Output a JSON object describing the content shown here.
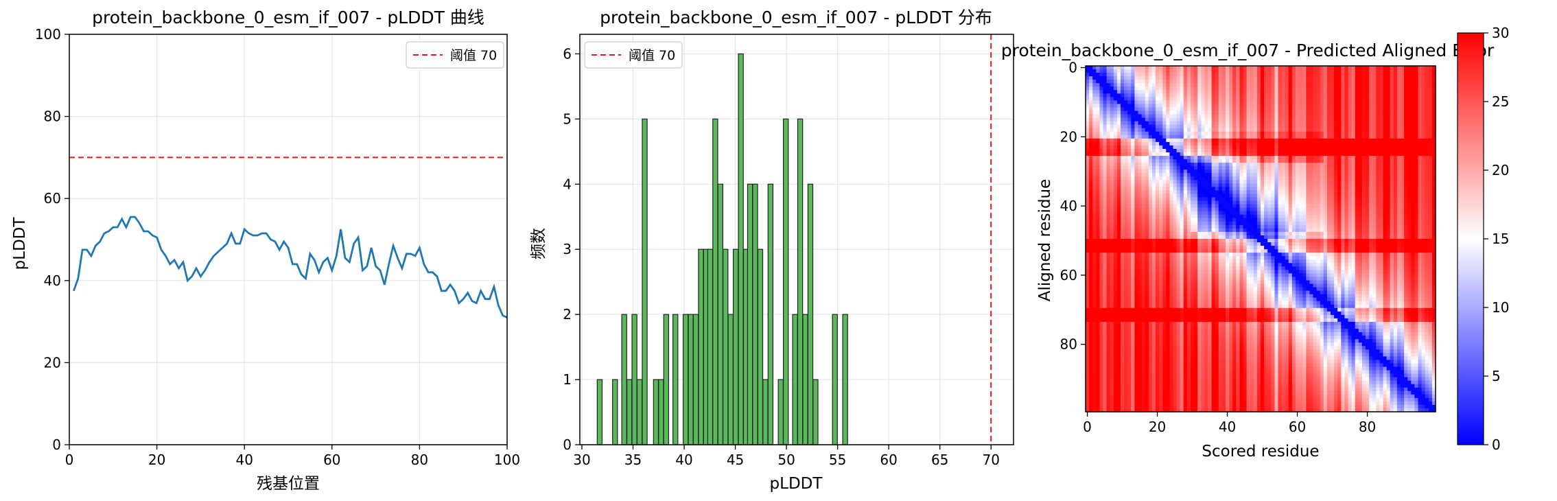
{
  "chart_data": [
    {
      "type": "line",
      "title": "protein_backbone_0_esm_if_007 - pLDDT 曲线",
      "xlabel": "残基位置",
      "ylabel": "pLDDT",
      "xlim": [
        0,
        100
      ],
      "ylim": [
        0,
        100
      ],
      "xticks": [
        0,
        20,
        40,
        60,
        80,
        100
      ],
      "yticks": [
        0,
        20,
        40,
        60,
        80,
        100
      ],
      "grid": true,
      "legend_position": "top-right",
      "threshold": {
        "value": 70,
        "label": "阈值 70",
        "color": "#e41a1c",
        "style": "dashed"
      },
      "series": [
        {
          "color": "#1f77b4",
          "x": [
            1,
            2,
            3,
            4,
            5,
            6,
            7,
            8,
            9,
            10,
            11,
            12,
            13,
            14,
            15,
            16,
            17,
            18,
            19,
            20,
            21,
            22,
            23,
            24,
            25,
            26,
            27,
            28,
            29,
            30,
            31,
            32,
            33,
            34,
            35,
            36,
            37,
            38,
            39,
            40,
            41,
            42,
            43,
            44,
            45,
            46,
            47,
            48,
            49,
            50,
            51,
            52,
            53,
            54,
            55,
            56,
            57,
            58,
            59,
            60,
            61,
            62,
            63,
            64,
            65,
            66,
            67,
            68,
            69,
            70,
            71,
            72,
            73,
            74,
            75,
            76,
            77,
            78,
            79,
            80,
            81,
            82,
            83,
            84,
            85,
            86,
            87,
            88,
            89,
            90,
            91,
            92,
            93,
            94,
            95,
            96,
            97,
            98,
            99,
            100
          ],
          "values": [
            37.5,
            40.5,
            47.5,
            47.5,
            46,
            48.5,
            49.5,
            51.5,
            52,
            53,
            53,
            55,
            53,
            55.5,
            55.5,
            54,
            52,
            52,
            51,
            50.5,
            47.5,
            46,
            44,
            45,
            43,
            44.5,
            40,
            41,
            43,
            41,
            42.5,
            44.5,
            46,
            47,
            48,
            49,
            51.5,
            49,
            49,
            52.5,
            51.5,
            51,
            51,
            51.5,
            51.5,
            50,
            49.5,
            47.5,
            49.5,
            48,
            44,
            44,
            41.5,
            40.5,
            46.5,
            45,
            42,
            44.5,
            45.5,
            42.5,
            46,
            52.5,
            45.5,
            44.5,
            49,
            50.5,
            42.5,
            43.5,
            48,
            43.5,
            42.5,
            39,
            44,
            48.5,
            45.5,
            43,
            46.5,
            46.5,
            46,
            48,
            44,
            42,
            42,
            41,
            37.5,
            37.5,
            39,
            37.5,
            34.5,
            35.5,
            37,
            35,
            34.5,
            37.5,
            35.5,
            35.5,
            38.5,
            34,
            31.5,
            31
          ]
        }
      ]
    },
    {
      "type": "bar",
      "title": "protein_backbone_0_esm_if_007 - pLDDT 分布",
      "xlabel": "pLDDT",
      "ylabel": "频数",
      "xlim": [
        29.8,
        72.2
      ],
      "ylim": [
        0,
        6.3
      ],
      "xticks": [
        30,
        35,
        40,
        45,
        50,
        55,
        60,
        65,
        70
      ],
      "yticks": [
        0,
        1,
        2,
        3,
        4,
        5,
        6
      ],
      "grid": true,
      "legend_position": "top-left",
      "threshold": {
        "value": 70,
        "label": "阈值 70",
        "color": "#e41a1c",
        "style": "dashed"
      },
      "bar_color": "#5cb85c",
      "bin_width": 0.48,
      "bin_starts": [
        31.5,
        33,
        33.9,
        34.4,
        34.9,
        35.4,
        35.9,
        37,
        37.5,
        38,
        38.9,
        39.9,
        40.4,
        40.9,
        41.4,
        41.9,
        42.3,
        42.8,
        43.3,
        43.8,
        44.3,
        44.8,
        45.3,
        45.8,
        46.2,
        46.7,
        47.2,
        47.7,
        48.2,
        49.2,
        49.7,
        50.6,
        51.1,
        51.6,
        52.1,
        52.6,
        54.5,
        55.5
      ],
      "counts": [
        1,
        1,
        2,
        1,
        2,
        1,
        5,
        1,
        1,
        2,
        2,
        2,
        2,
        2,
        3,
        3,
        3,
        5,
        4,
        3,
        2,
        3,
        6,
        3,
        4,
        4,
        3,
        1,
        4,
        1,
        5,
        2,
        5,
        2,
        4,
        1,
        2,
        2
      ]
    },
    {
      "type": "heatmap",
      "title": "protein_backbone_0_esm_if_007 - Predicted Aligned Error",
      "xlabel": "Scored residue",
      "ylabel": "Aligned residue",
      "size": 100,
      "xticks": [
        0,
        20,
        40,
        60,
        80
      ],
      "yticks": [
        0,
        20,
        40,
        60,
        80
      ],
      "colormap": "bwr",
      "colorbar": {
        "min": 0,
        "max": 30,
        "ticks": [
          0,
          5,
          10,
          15,
          20,
          25,
          30
        ]
      }
    }
  ]
}
